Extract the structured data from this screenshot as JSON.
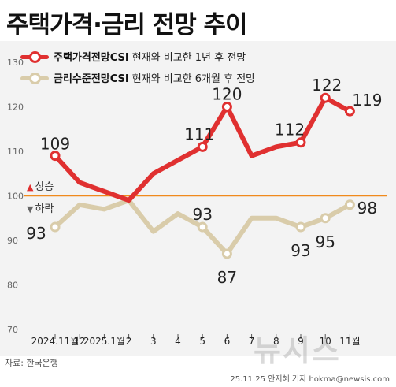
{
  "title": "주택가격·금리 전망 추이",
  "source": "자료: 한국은행",
  "credit": "25.11.25 안지혜 기자 hokma@newsis.com",
  "watermark": "뉴시스",
  "reference": {
    "value": 100,
    "up_label": "상승",
    "down_label": "하락",
    "up_symbol": "▲",
    "down_symbol": "▼"
  },
  "colors": {
    "housing": "#e03030",
    "rate": "#d9ccaa",
    "reference": "#f08a1c",
    "up": "#e03030",
    "down": "#666666"
  },
  "legend": [
    {
      "name": "주택가격전망CSI",
      "desc": "현재와 비교한 1년 후 전망"
    },
    {
      "name": "금리수준전망CSI",
      "desc": "현재와 비교한 6개월 후 전망"
    }
  ],
  "chart_data": {
    "type": "line",
    "title": "주택가격·금리 전망 추이",
    "categories": [
      "2024.11월",
      "12",
      "2025.1월",
      "2",
      "3",
      "4",
      "5",
      "6",
      "7",
      "8",
      "9",
      "10",
      "11월"
    ],
    "ylim": [
      70,
      130
    ],
    "yticks": [
      70,
      80,
      90,
      100,
      110,
      120,
      130
    ],
    "grid": false,
    "legend_position": "top-left",
    "series": [
      {
        "name": "주택가격전망CSI",
        "values": [
          109,
          103,
          101,
          99,
          105,
          108,
          111,
          120,
          109,
          111,
          112,
          122,
          119
        ],
        "marker_indices": [
          0,
          6,
          7,
          10,
          11,
          12
        ],
        "labels": [
          "109",
          "",
          "",
          "",
          "",
          "",
          "111",
          "120",
          "",
          "",
          "112",
          "122",
          "119"
        ]
      },
      {
        "name": "금리수준전망CSI",
        "values": [
          93,
          98,
          97,
          99,
          92,
          96,
          93,
          87,
          95,
          95,
          93,
          95,
          98
        ],
        "marker_indices": [
          0,
          6,
          7,
          10,
          11,
          12
        ],
        "labels": [
          "93",
          "",
          "",
          "",
          "",
          "",
          "93",
          "87",
          "",
          "",
          "93",
          "95",
          "98"
        ]
      }
    ]
  }
}
